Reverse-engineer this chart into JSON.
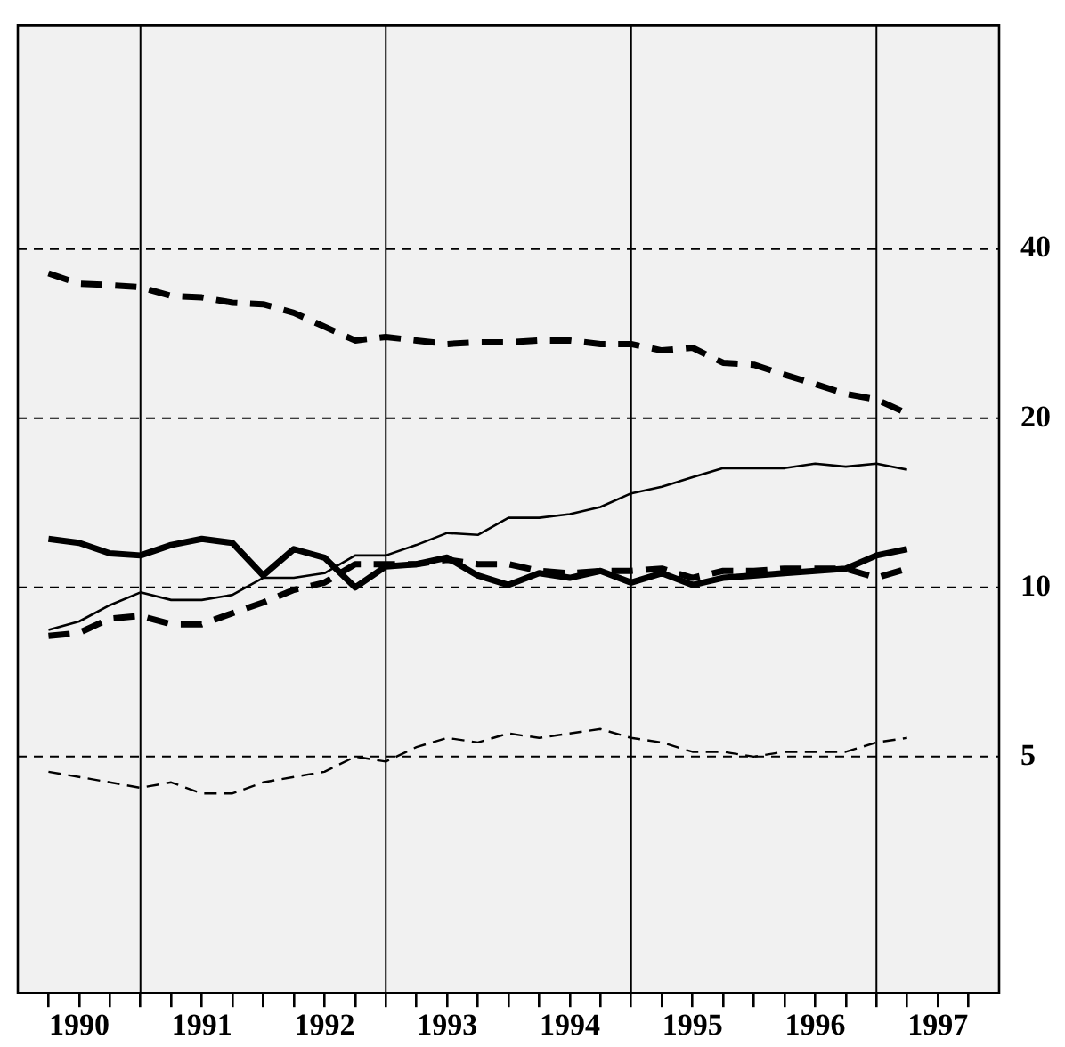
{
  "chart_data": {
    "type": "line",
    "log": "y",
    "grid": "y",
    "legend": false,
    "marker": "none",
    "x": [
      1990.25,
      1990.5,
      1990.75,
      1991,
      1991.25,
      1991.5,
      1991.75,
      1992,
      1992.25,
      1992.5,
      1992.75,
      1993,
      1993.25,
      1993.5,
      1993.75,
      1994,
      1994.25,
      1994.5,
      1994.75,
      1995,
      1995.25,
      1995.5,
      1995.75,
      1996,
      1996.25,
      1996.5,
      1996.75,
      1997,
      1997.25
    ],
    "xlim": [
      1990,
      1998
    ],
    "xticks": [
      {
        "value": 1990.25,
        "label": null
      },
      {
        "value": 1990.5,
        "label": "1990"
      },
      {
        "value": 1990.75,
        "label": null
      },
      {
        "value": 1991,
        "label": null
      },
      {
        "value": 1991.25,
        "label": null
      },
      {
        "value": 1991.5,
        "label": "1991"
      },
      {
        "value": 1991.75,
        "label": null
      },
      {
        "value": 1992,
        "label": null
      },
      {
        "value": 1992.25,
        "label": null
      },
      {
        "value": 1992.5,
        "label": "1992"
      },
      {
        "value": 1992.75,
        "label": null
      },
      {
        "value": 1993,
        "label": null
      },
      {
        "value": 1993.25,
        "label": null
      },
      {
        "value": 1993.5,
        "label": "1993"
      },
      {
        "value": 1993.75,
        "label": null
      },
      {
        "value": 1994,
        "label": null
      },
      {
        "value": 1994.25,
        "label": null
      },
      {
        "value": 1994.5,
        "label": "1994"
      },
      {
        "value": 1994.75,
        "label": null
      },
      {
        "value": 1995,
        "label": null
      },
      {
        "value": 1995.25,
        "label": null
      },
      {
        "value": 1995.5,
        "label": "1995"
      },
      {
        "value": 1995.75,
        "label": null
      },
      {
        "value": 1996,
        "label": null
      },
      {
        "value": 1996.25,
        "label": null
      },
      {
        "value": 1996.5,
        "label": "1996"
      },
      {
        "value": 1996.75,
        "label": null
      },
      {
        "value": 1997,
        "label": null
      },
      {
        "value": 1997.25,
        "label": null
      },
      {
        "value": 1997.5,
        "label": "1997"
      },
      {
        "value": 1997.75,
        "label": null
      }
    ],
    "ylim": [
      1.9,
      100
    ],
    "yticks": [
      5,
      10,
      20,
      40
    ],
    "ref_lines": [
      {
        "axis": "x",
        "value": 1991,
        "label": null
      },
      {
        "axis": "x",
        "value": 1993,
        "label": null
      },
      {
        "axis": "x",
        "value": 1995,
        "label": null
      },
      {
        "axis": "x",
        "value": 1997,
        "label": null
      }
    ],
    "series": [
      {
        "color": "#000000",
        "line_style": "dashed",
        "values": [
          36.2,
          34.7,
          34.5,
          34.2,
          33.0,
          32.8,
          32.1,
          31.9,
          30.8,
          29.1,
          27.5,
          27.9,
          27.5,
          27.1,
          27.3,
          27.3,
          27.5,
          27.5,
          27.1,
          27.1,
          26.4,
          26.7,
          25.1,
          24.9,
          23.9,
          23.0,
          22.1,
          21.6,
          20.4
        ]
      },
      {
        "color": "#000000",
        "line_style": "solid",
        "values": [
          8.4,
          8.7,
          9.3,
          9.8,
          9.5,
          9.5,
          9.7,
          10.4,
          10.4,
          10.6,
          11.4,
          11.4,
          11.9,
          12.5,
          12.4,
          13.3,
          13.3,
          13.5,
          13.9,
          14.7,
          15.1,
          15.7,
          16.3,
          16.3,
          16.3,
          16.6,
          16.4,
          16.6,
          16.2
        ]
      },
      {
        "color": "#000000",
        "line_style": "solid",
        "values": [
          12.2,
          12.0,
          11.5,
          11.4,
          11.9,
          12.2,
          12.0,
          10.5,
          11.7,
          11.3,
          10.0,
          10.9,
          11.0,
          11.3,
          10.5,
          10.1,
          10.6,
          10.4,
          10.7,
          10.2,
          10.6,
          10.1,
          10.4,
          10.5,
          10.6,
          10.7,
          10.8,
          11.4,
          11.7
        ]
      },
      {
        "color": "#000000",
        "line_style": "dashed",
        "values": [
          8.2,
          8.3,
          8.8,
          8.9,
          8.6,
          8.6,
          9.0,
          9.4,
          9.9,
          10.2,
          11.0,
          11.0,
          11.0,
          11.2,
          11.0,
          11.0,
          10.7,
          10.6,
          10.7,
          10.7,
          10.8,
          10.4,
          10.7,
          10.7,
          10.8,
          10.8,
          10.8,
          10.4,
          10.8
        ]
      },
      {
        "color": "#000000",
        "line_style": "dashed",
        "values": [
          4.7,
          4.6,
          4.5,
          4.4,
          4.5,
          4.3,
          4.3,
          4.5,
          4.6,
          4.7,
          5.0,
          4.9,
          5.2,
          5.4,
          5.3,
          5.5,
          5.4,
          5.5,
          5.6,
          5.4,
          5.3,
          5.1,
          5.1,
          5.0,
          5.1,
          5.1,
          5.1,
          5.3,
          5.4
        ]
      }
    ]
  }
}
